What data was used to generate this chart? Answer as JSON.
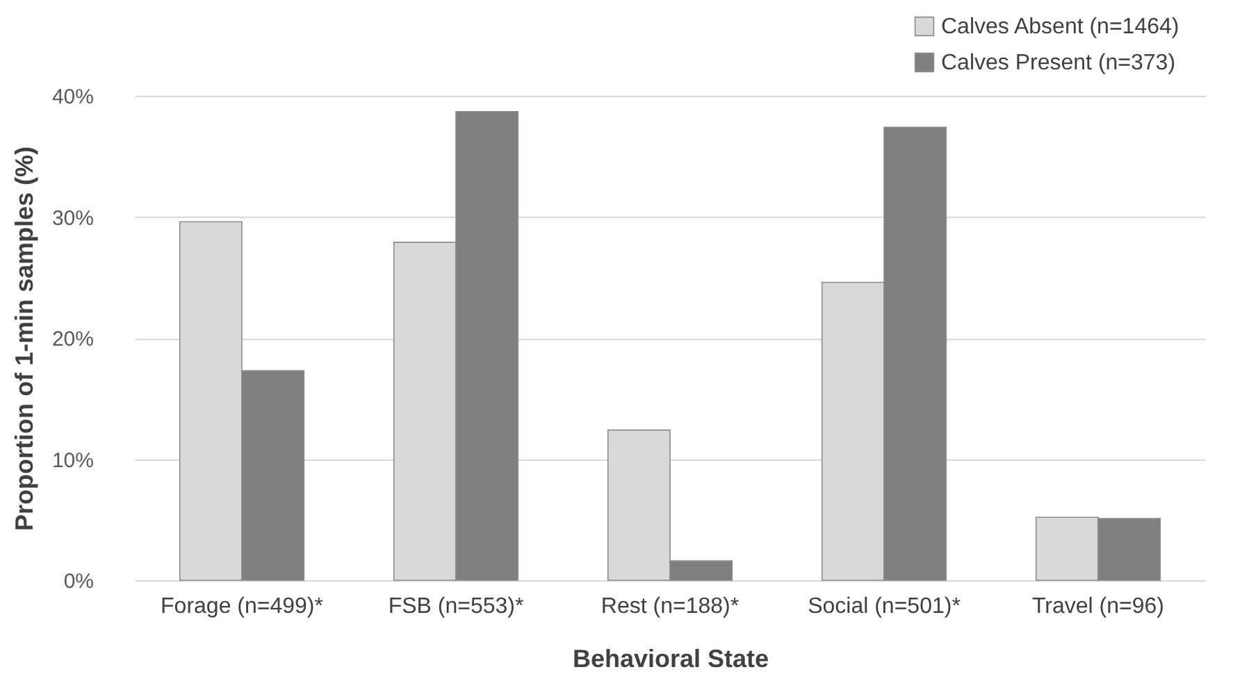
{
  "chart_data": {
    "type": "bar",
    "xlabel": "Behavioral State",
    "ylabel": "Proportion of  1-min samples (%)",
    "categories": [
      "Forage (n=499)*",
      "FSB (n=553)*",
      "Rest (n=188)*",
      "Social (n=501)*",
      "Travel (n=96)"
    ],
    "series": [
      {
        "name": "Calves Absent (n=1464)",
        "color": "#d9d9d9",
        "values": [
          29.6,
          27.9,
          12.4,
          24.6,
          5.2
        ]
      },
      {
        "name": "Calves Present (n=373)",
        "color": "#7f7f7f",
        "values": [
          17.3,
          38.7,
          1.6,
          37.4,
          5.1
        ]
      }
    ],
    "ylim": [
      0,
      40
    ],
    "yticks": [
      {
        "value": 0,
        "label": "0%"
      },
      {
        "value": 10,
        "label": "10%"
      },
      {
        "value": 20,
        "label": "20%"
      },
      {
        "value": 30,
        "label": "30%"
      },
      {
        "value": 40,
        "label": "40%"
      }
    ],
    "grid": "y",
    "legend": "top right"
  }
}
